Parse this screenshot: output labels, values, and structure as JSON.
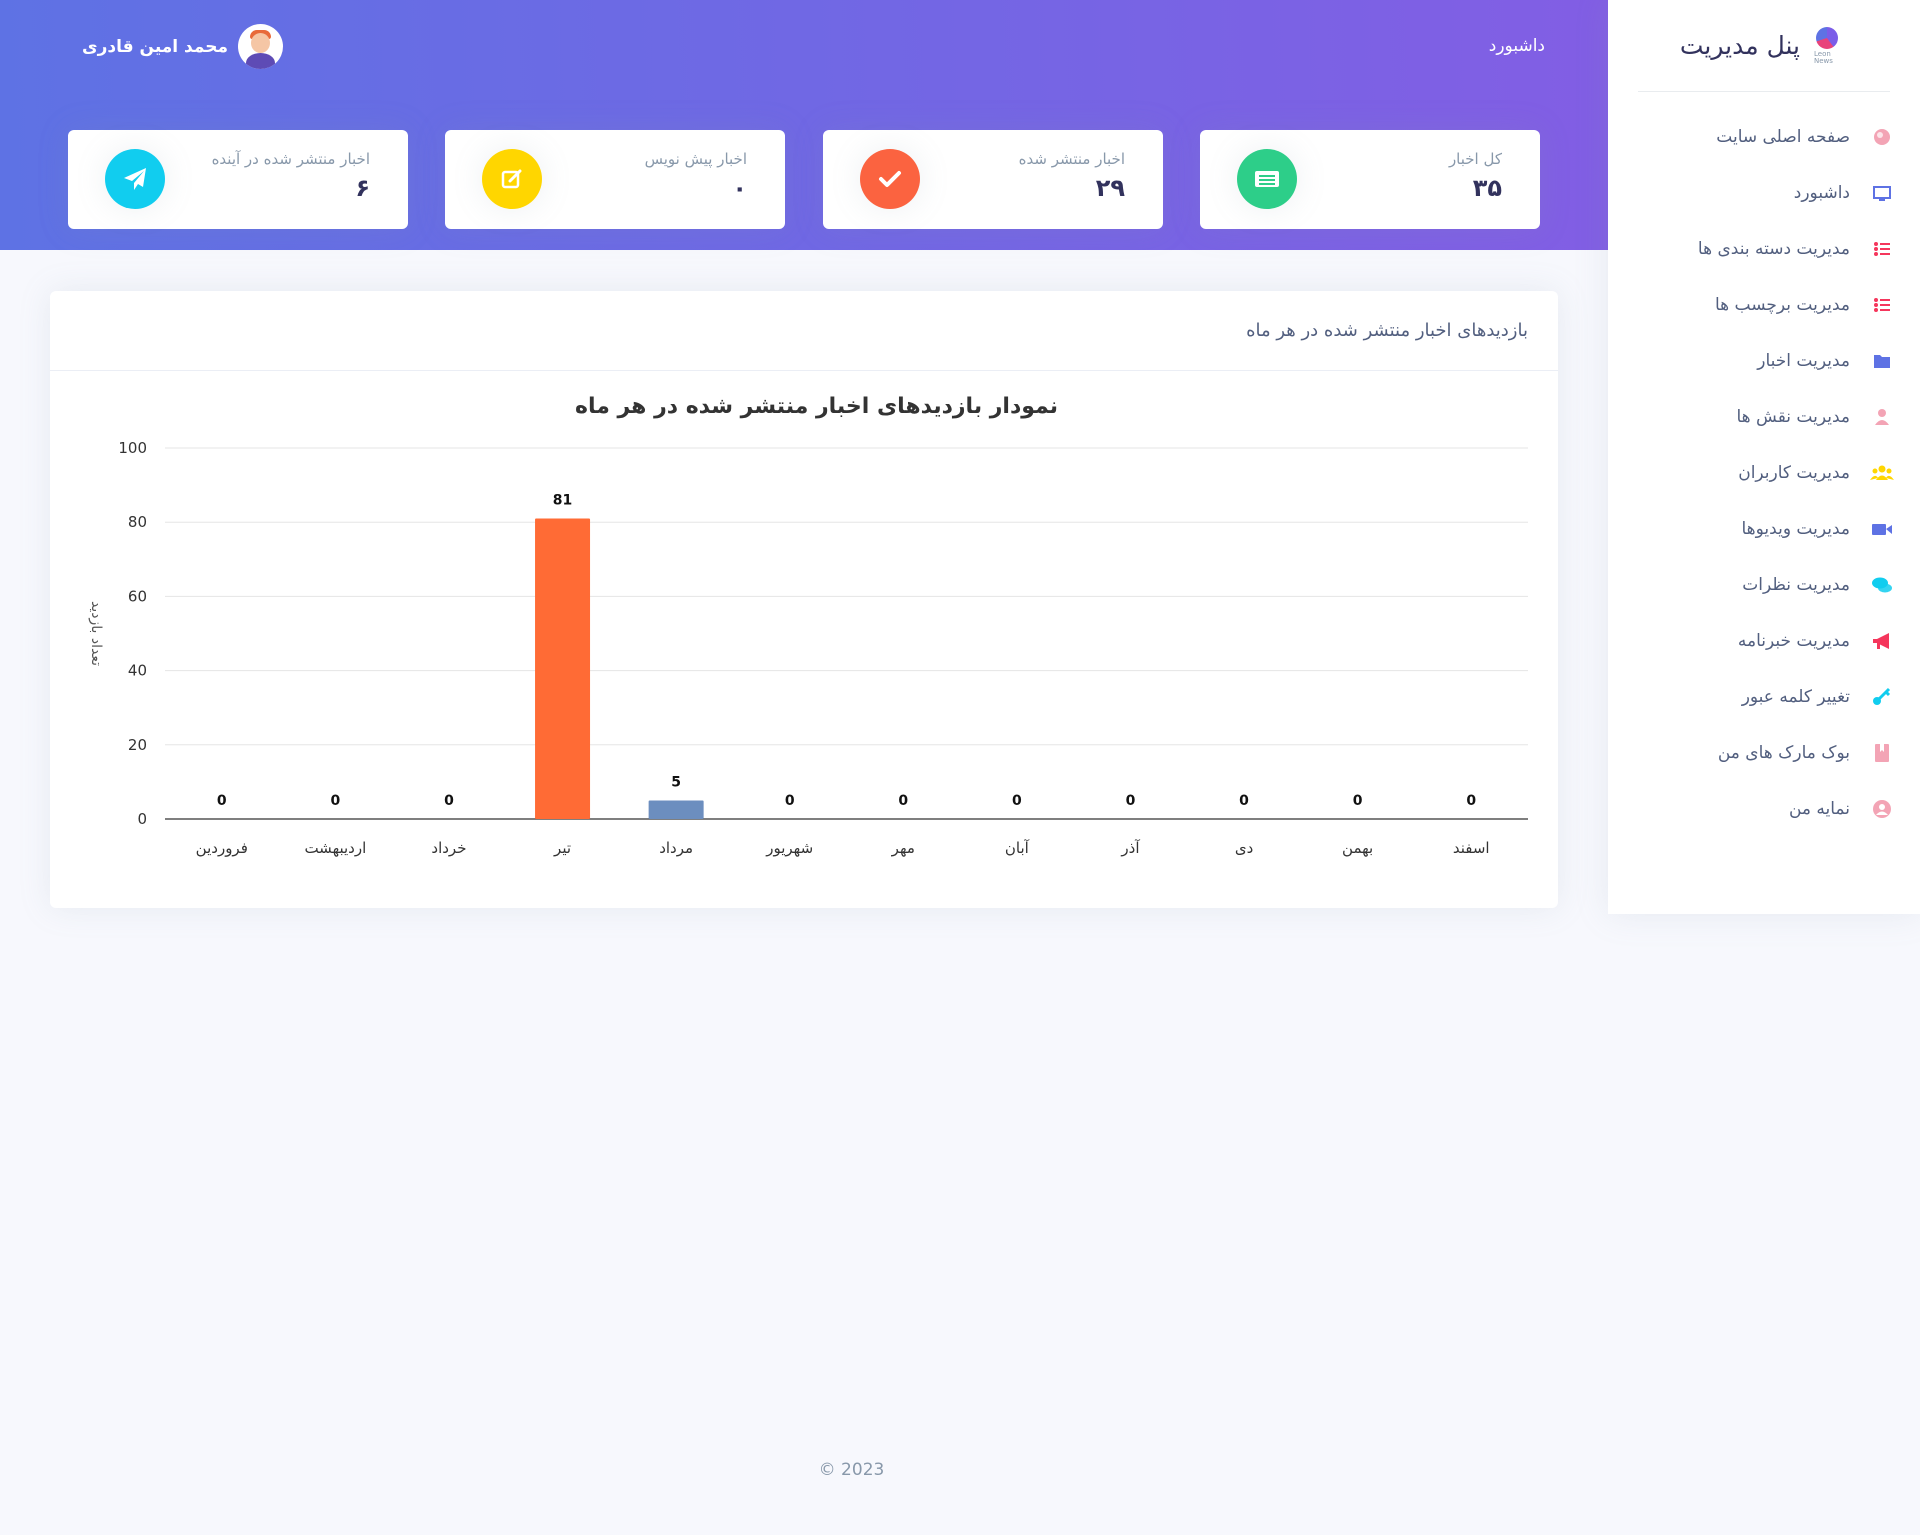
{
  "sidebar": {
    "brand_title": "پنل مدیریت",
    "brand_logo_text": "Leon News",
    "items": [
      {
        "label": "صفحه اصلی سایت",
        "icon": "globe-icon",
        "color": "#f3a4b5"
      },
      {
        "label": "داشبورد",
        "icon": "monitor-icon",
        "color": "#5e72e4"
      },
      {
        "label": "مدیریت دسته بندی ها",
        "icon": "list-icon",
        "color": "#f5365c"
      },
      {
        "label": "مدیریت برچسب ها",
        "icon": "list-icon",
        "color": "#f5365c"
      },
      {
        "label": "مدیریت اخبار",
        "icon": "folder-icon",
        "color": "#5e72e4"
      },
      {
        "label": "مدیریت نقش ها",
        "icon": "user-icon",
        "color": "#f3a4b5"
      },
      {
        "label": "مدیریت کاربران",
        "icon": "users-icon",
        "color": "#ffd600"
      },
      {
        "label": "مدیریت ویدیوها",
        "icon": "video-icon",
        "color": "#5e72e4"
      },
      {
        "label": "مدیریت نظرات",
        "icon": "comments-icon",
        "color": "#11cdef"
      },
      {
        "label": "مدیریت خبرنامه",
        "icon": "megaphone-icon",
        "color": "#f5365c"
      },
      {
        "label": "تغییر کلمه عبور",
        "icon": "key-icon",
        "color": "#11cdef"
      },
      {
        "label": "بوک مارک های من",
        "icon": "bookmark-icon",
        "color": "#f3a4b5"
      },
      {
        "label": "نمایه من",
        "icon": "user-circle-icon",
        "color": "#f3a4b5"
      }
    ]
  },
  "header": {
    "breadcrumb": "داشبورد",
    "user_name": "محمد امین قادری"
  },
  "stats": [
    {
      "title": "کل اخبار",
      "value": "۳۵",
      "icon": "newspaper-icon",
      "color": "#2dce89"
    },
    {
      "title": "اخبار منتشر شده",
      "value": "۲۹",
      "icon": "check-icon",
      "color": "#fb6340"
    },
    {
      "title": "اخبار پیش نویس",
      "value": "۰",
      "icon": "edit-icon",
      "color": "#ffd600"
    },
    {
      "title": "اخبار منتشر شده در آینده",
      "value": "۶",
      "icon": "paper-plane-icon",
      "color": "#11cdef"
    }
  ],
  "chart_card_title": "بازدیدهای اخبار منتشر شده در هر ماه",
  "chart_data": {
    "type": "bar",
    "title": "نمودار بازدیدهای اخبار منتشر شده در هر ماه",
    "ylabel": "تعداد بازدید",
    "xlabel": "",
    "categories": [
      "فروردین",
      "اردیبهشت",
      "خرداد",
      "تیر",
      "مرداد",
      "شهریور",
      "مهر",
      "آبان",
      "آذر",
      "دی",
      "بهمن",
      "اسفند"
    ],
    "values": [
      0,
      0,
      0,
      81,
      5,
      0,
      0,
      0,
      0,
      0,
      0,
      0
    ],
    "bar_colors": [
      "#6c8ebf",
      "#6c8ebf",
      "#6c8ebf",
      "#ff6b35",
      "#6c8ebf",
      "#6c8ebf",
      "#6c8ebf",
      "#6c8ebf",
      "#6c8ebf",
      "#6c8ebf",
      "#6c8ebf",
      "#6c8ebf"
    ],
    "ylim": [
      0,
      100
    ],
    "yticks": [
      0,
      20,
      40,
      60,
      80,
      100
    ],
    "grid": true
  },
  "footer": "© 2023"
}
